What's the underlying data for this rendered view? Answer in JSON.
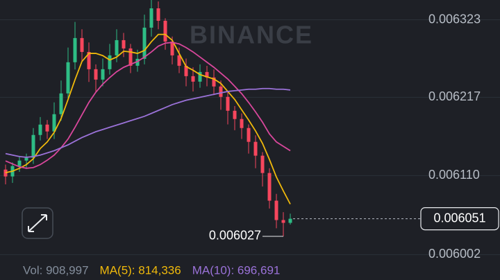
{
  "chart_data": {
    "type": "candlestick",
    "watermark": "BINANCE",
    "up_color": "#2ebd85",
    "down_color": "#f6465d",
    "open": [
      0.0061182,
      0.0061088,
      0.006123,
      0.0061305,
      0.0061343,
      0.0061655,
      0.0061797,
      0.0061703,
      0.0061939,
      0.0062223,
      0.0062649,
      0.006298,
      0.006279,
      0.0062554,
      0.0062412,
      0.0062554,
      0.0062743,
      0.0062951,
      0.0062838,
      0.0062601,
      0.0062696,
      0.0063122,
      0.0063386,
      0.0063216,
      0.0062932,
      0.0062743,
      0.0062601,
      0.0062459,
      0.0062384,
      0.0062516,
      0.0062441,
      0.0062318,
      0.0062176,
      0.0061986,
      0.0061873,
      0.006175,
      0.0061561,
      0.0061372,
      0.0061135,
      0.0060757,
      0.0060492,
      0.0060454
    ],
    "high": [
      0.006125,
      0.006128,
      0.006137,
      0.00614,
      0.006175,
      0.00619,
      0.006186,
      0.00621,
      0.00624,
      0.006285,
      0.00632,
      0.00631,
      0.006292,
      0.006262,
      0.00627,
      0.00629,
      0.00631,
      0.006305,
      0.00629,
      0.006282,
      0.00633,
      0.006352,
      0.006348,
      0.006325,
      0.0063,
      0.006285,
      0.00627,
      0.006258,
      0.006262,
      0.00626,
      0.006255,
      0.00624,
      0.006225,
      0.006205,
      0.006195,
      0.00618,
      0.006165,
      0.006142,
      0.00612,
      0.006085,
      0.00606,
      0.006058
    ],
    "low": [
      0.006098,
      0.0061,
      0.006115,
      0.00612,
      0.006126,
      0.006158,
      0.00616,
      0.00616,
      0.006185,
      0.006215,
      0.006255,
      0.006265,
      0.006238,
      0.006225,
      0.006232,
      0.006248,
      0.006265,
      0.006272,
      0.00625,
      0.006252,
      0.006262,
      0.0063,
      0.00631,
      0.006282,
      0.006262,
      0.00625,
      0.006232,
      0.006225,
      0.00623,
      0.006232,
      0.00622,
      0.0062,
      0.00618,
      0.006172,
      0.00616,
      0.00614,
      0.00612,
      0.006095,
      0.006065,
      0.006038,
      0.006027,
      0.006043
    ],
    "close": [
      0.0061088,
      0.006123,
      0.0061305,
      0.0061343,
      0.0061655,
      0.0061797,
      0.0061703,
      0.0061939,
      0.0062223,
      0.0062649,
      0.006298,
      0.006279,
      0.0062554,
      0.0062412,
      0.0062554,
      0.0062743,
      0.0062951,
      0.0062838,
      0.0062601,
      0.0062696,
      0.0063122,
      0.0063386,
      0.0063216,
      0.0062932,
      0.0062743,
      0.0062601,
      0.0062459,
      0.0062384,
      0.0062516,
      0.0062441,
      0.0062318,
      0.0062176,
      0.0061986,
      0.0061873,
      0.006175,
      0.0061561,
      0.0061372,
      0.0061135,
      0.0060757,
      0.0060492,
      0.0060454,
      0.006051
    ],
    "ma_lines": [
      {
        "color": "#f0b90b",
        "values": [
          0.006114,
          0.006116,
          0.00612,
          0.006125,
          0.006133,
          0.006147,
          0.006156,
          0.006169,
          0.006188,
          0.006214,
          0.006241,
          0.006266,
          0.006277,
          0.006277,
          0.006274,
          0.006268,
          0.006272,
          0.00628,
          0.006279,
          0.006277,
          0.006281,
          0.006293,
          0.006303,
          0.006303,
          0.006295,
          0.006277,
          0.006259,
          0.006254,
          0.006248,
          0.006245,
          0.006242,
          0.006236,
          0.006225,
          0.006214,
          0.0062,
          0.006186,
          0.006171,
          0.006154,
          0.006132,
          0.006108,
          0.006089,
          0.006071
        ]
      },
      {
        "color": "#d9479c",
        "values": [
          0.00613,
          0.006126,
          0.006122,
          0.00612,
          0.006121,
          0.006125,
          0.006131,
          0.006138,
          0.006148,
          0.00616,
          0.006176,
          0.006193,
          0.00621,
          0.006224,
          0.006235,
          0.006244,
          0.006252,
          0.006258,
          0.006262,
          0.006266,
          0.006272,
          0.006279,
          0.006287,
          0.006291,
          0.006292,
          0.00629,
          0.006285,
          0.006279,
          0.006272,
          0.006265,
          0.006258,
          0.00625,
          0.006242,
          0.006232,
          0.006222,
          0.00621,
          0.006197,
          0.006183,
          0.006167,
          0.006156,
          0.00615,
          0.006144
        ]
      },
      {
        "color": "#9b72d9",
        "values": [
          0.00614,
          0.006138,
          0.006136,
          0.006135,
          0.006136,
          0.006138,
          0.006141,
          0.006144,
          0.006148,
          0.006152,
          0.006157,
          0.006162,
          0.006166,
          0.00617,
          0.006173,
          0.006176,
          0.006179,
          0.006182,
          0.006185,
          0.006188,
          0.006191,
          0.006195,
          0.006199,
          0.006203,
          0.006207,
          0.00621,
          0.006213,
          0.006215,
          0.006217,
          0.006219,
          0.006221,
          0.006223,
          0.006225,
          0.006226,
          0.006227,
          0.006228,
          0.006228,
          0.006229,
          0.006229,
          0.006228,
          0.006228,
          0.006227
        ]
      }
    ],
    "ylim": [
      0.00599,
      0.00635
    ],
    "yticks": [
      0.006323,
      0.006217,
      {
        "value": 0.00611,
        "label": "0.006110"
      },
      0.006002
    ],
    "grid": true,
    "last_price": 0.006051,
    "low_marker": 0.006027,
    "footer": [
      {
        "text": "Vol: 908,997",
        "color": "#848e9c"
      },
      {
        "text": "MA(5): 814,336",
        "color": "#f0b90b"
      },
      {
        "text": "MA(10): 696,691",
        "color": "#9b72d9"
      }
    ]
  }
}
